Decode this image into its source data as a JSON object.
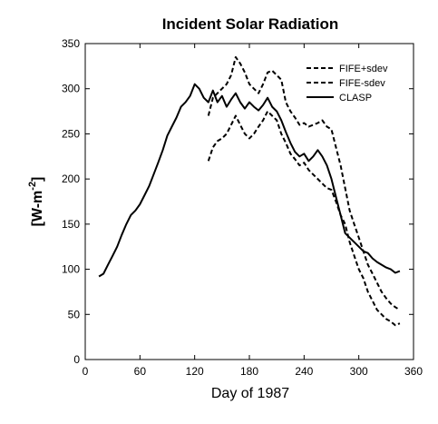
{
  "chart_data": {
    "type": "line",
    "title": "Incident Solar Radiation",
    "xlabel": "Day of 1987",
    "ylabel_main": "[W-m",
    "ylabel_sup": "-2",
    "ylabel_close": "]",
    "xlim": [
      0,
      360
    ],
    "ylim": [
      0,
      350
    ],
    "xticks": [
      0,
      60,
      120,
      180,
      240,
      300,
      360
    ],
    "yticks": [
      0,
      50,
      100,
      150,
      200,
      250,
      300,
      350
    ],
    "grid": false,
    "legend_position": "top-right",
    "series": [
      {
        "name": "FIFE+sdev",
        "style": "dashed",
        "x": [
          135,
          140,
          145,
          150,
          155,
          160,
          165,
          170,
          175,
          180,
          185,
          190,
          195,
          200,
          205,
          210,
          215,
          220,
          225,
          230,
          235,
          240,
          245,
          250,
          255,
          260,
          265,
          270,
          275,
          280,
          285,
          290,
          295,
          300,
          305,
          310,
          315,
          320,
          325,
          330,
          335,
          340,
          345
        ],
        "y": [
          270,
          290,
          295,
          300,
          305,
          315,
          335,
          328,
          318,
          305,
          300,
          295,
          305,
          318,
          320,
          315,
          310,
          285,
          275,
          268,
          260,
          262,
          258,
          260,
          262,
          265,
          258,
          255,
          235,
          215,
          190,
          165,
          150,
          135,
          120,
          105,
          95,
          85,
          75,
          68,
          62,
          58,
          55
        ]
      },
      {
        "name": "FIFE-sdev",
        "style": "dashed",
        "x": [
          135,
          140,
          145,
          150,
          155,
          160,
          165,
          170,
          175,
          180,
          185,
          190,
          195,
          200,
          205,
          210,
          215,
          220,
          225,
          230,
          235,
          240,
          245,
          250,
          255,
          260,
          265,
          270,
          275,
          280,
          285,
          290,
          295,
          300,
          305,
          310,
          315,
          320,
          325,
          330,
          335,
          340,
          345
        ],
        "y": [
          220,
          235,
          242,
          245,
          250,
          260,
          270,
          260,
          250,
          245,
          250,
          258,
          265,
          275,
          270,
          265,
          250,
          240,
          228,
          222,
          215,
          218,
          210,
          205,
          200,
          195,
          190,
          188,
          175,
          160,
          150,
          130,
          115,
          100,
          90,
          75,
          65,
          55,
          50,
          45,
          42,
          38,
          40
        ]
      },
      {
        "name": "CLASP",
        "style": "solid",
        "x": [
          15,
          20,
          25,
          30,
          35,
          40,
          45,
          50,
          55,
          60,
          65,
          70,
          75,
          80,
          85,
          90,
          95,
          100,
          105,
          110,
          115,
          120,
          125,
          130,
          135,
          140,
          145,
          150,
          155,
          160,
          165,
          170,
          175,
          180,
          185,
          190,
          195,
          200,
          205,
          210,
          215,
          220,
          225,
          230,
          235,
          240,
          245,
          250,
          255,
          260,
          265,
          270,
          275,
          280,
          285,
          290,
          295,
          300,
          305,
          310,
          315,
          320,
          325,
          330,
          335,
          340,
          345
        ],
        "y": [
          92,
          95,
          105,
          115,
          125,
          138,
          150,
          160,
          165,
          172,
          182,
          192,
          205,
          218,
          232,
          248,
          258,
          268,
          280,
          285,
          292,
          305,
          300,
          290,
          285,
          298,
          285,
          292,
          280,
          288,
          295,
          285,
          278,
          285,
          280,
          276,
          282,
          290,
          280,
          275,
          265,
          252,
          240,
          230,
          225,
          228,
          220,
          225,
          232,
          225,
          215,
          200,
          180,
          160,
          140,
          135,
          130,
          125,
          120,
          118,
          112,
          108,
          105,
          102,
          100,
          96,
          98
        ]
      }
    ]
  }
}
